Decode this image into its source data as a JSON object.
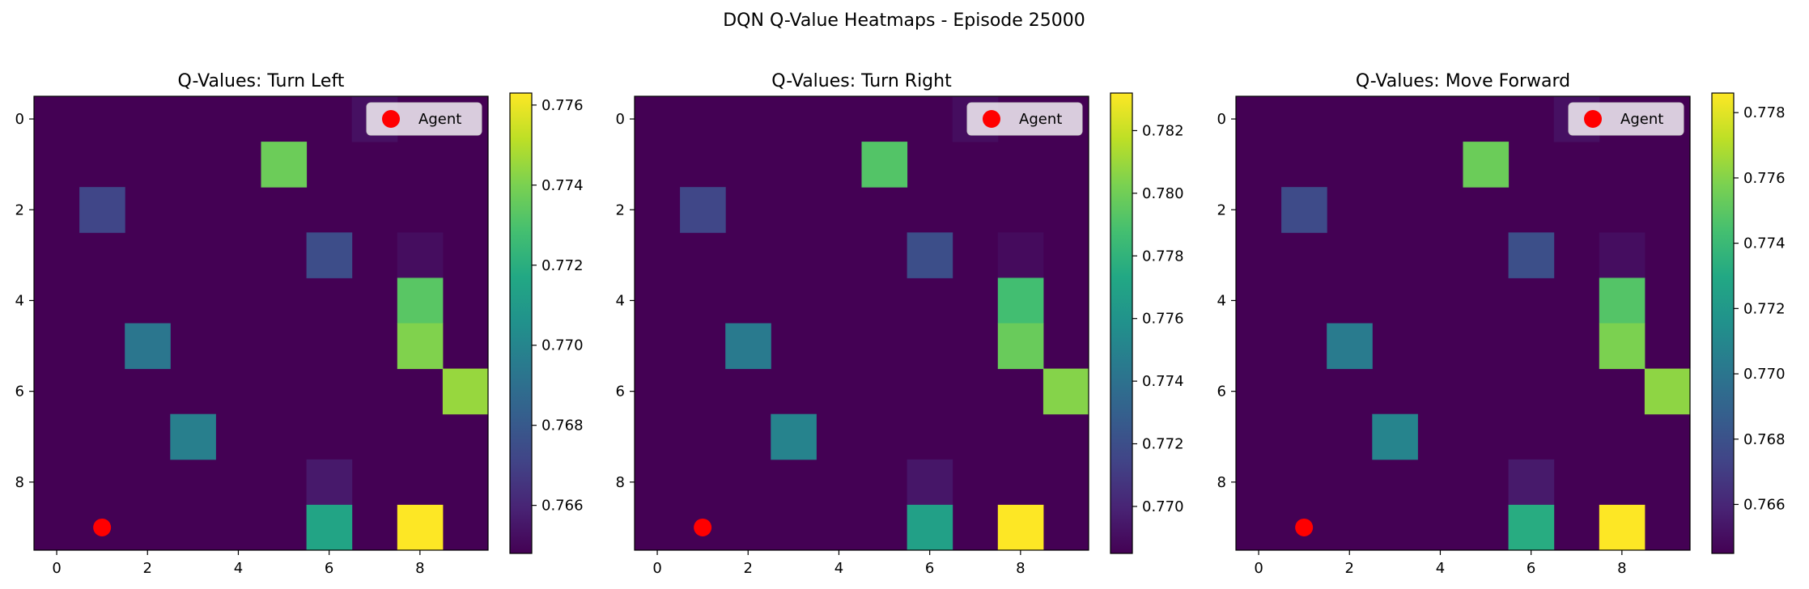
{
  "figure": {
    "suptitle": "DQN Q-Value Heatmaps - Episode 25000"
  },
  "colormap": "viridis",
  "agent": {
    "row": 9,
    "col": 1,
    "color": "#ff0000",
    "legend_label": "Agent",
    "legend_location": "upper right"
  },
  "chart_data": [
    {
      "type": "heatmap",
      "title": "Q-Values: Turn Left",
      "grid_size": [
        10,
        10
      ],
      "x_ticks": [
        0,
        2,
        4,
        6,
        8
      ],
      "y_ticks": [
        0,
        2,
        4,
        6,
        8
      ],
      "colorbar": {
        "range": [
          0.7648,
          0.7763
        ],
        "ticks": [
          0.766,
          0.768,
          0.77,
          0.772,
          0.774,
          0.776
        ]
      },
      "cells": [
        {
          "row": 0,
          "col": 7,
          "value": 0.7653
        },
        {
          "row": 1,
          "col": 5,
          "value": 0.7737
        },
        {
          "row": 2,
          "col": 1,
          "value": 0.7672
        },
        {
          "row": 3,
          "col": 6,
          "value": 0.7675
        },
        {
          "row": 3,
          "col": 8,
          "value": 0.7652
        },
        {
          "row": 4,
          "col": 8,
          "value": 0.7733
        },
        {
          "row": 5,
          "col": 2,
          "value": 0.7693
        },
        {
          "row": 5,
          "col": 8,
          "value": 0.7741
        },
        {
          "row": 6,
          "col": 9,
          "value": 0.7745
        },
        {
          "row": 7,
          "col": 3,
          "value": 0.7697
        },
        {
          "row": 8,
          "col": 6,
          "value": 0.7656
        },
        {
          "row": 9,
          "col": 6,
          "value": 0.7715
        },
        {
          "row": 9,
          "col": 8,
          "value": 0.7763
        }
      ],
      "default_value": 0.7648
    },
    {
      "type": "heatmap",
      "title": "Q-Values: Turn Right",
      "grid_size": [
        10,
        10
      ],
      "x_ticks": [
        0,
        2,
        4,
        6,
        8
      ],
      "y_ticks": [
        0,
        2,
        4,
        6,
        8
      ],
      "colorbar": {
        "range": [
          0.7685,
          0.7832
        ],
        "ticks": [
          0.77,
          0.772,
          0.774,
          0.776,
          0.778,
          0.78,
          0.782
        ]
      },
      "cells": [
        {
          "row": 0,
          "col": 7,
          "value": 0.769
        },
        {
          "row": 1,
          "col": 5,
          "value": 0.7792
        },
        {
          "row": 2,
          "col": 1,
          "value": 0.7716
        },
        {
          "row": 3,
          "col": 6,
          "value": 0.772
        },
        {
          "row": 3,
          "col": 8,
          "value": 0.7689
        },
        {
          "row": 4,
          "col": 8,
          "value": 0.7787
        },
        {
          "row": 5,
          "col": 2,
          "value": 0.7745
        },
        {
          "row": 5,
          "col": 8,
          "value": 0.7798
        },
        {
          "row": 6,
          "col": 9,
          "value": 0.7805
        },
        {
          "row": 7,
          "col": 3,
          "value": 0.775
        },
        {
          "row": 8,
          "col": 6,
          "value": 0.7694
        },
        {
          "row": 9,
          "col": 6,
          "value": 0.7768
        },
        {
          "row": 9,
          "col": 8,
          "value": 0.7832
        }
      ],
      "default_value": 0.7685
    },
    {
      "type": "heatmap",
      "title": "Q-Values: Move Forward",
      "grid_size": [
        10,
        10
      ],
      "x_ticks": [
        0,
        2,
        4,
        6,
        8
      ],
      "y_ticks": [
        0,
        2,
        4,
        6,
        8
      ],
      "colorbar": {
        "range": [
          0.7645,
          0.7786
        ],
        "ticks": [
          0.766,
          0.768,
          0.77,
          0.772,
          0.774,
          0.776,
          0.778
        ]
      },
      "cells": [
        {
          "row": 0,
          "col": 7,
          "value": 0.7651
        },
        {
          "row": 1,
          "col": 5,
          "value": 0.7754
        },
        {
          "row": 2,
          "col": 1,
          "value": 0.7677
        },
        {
          "row": 3,
          "col": 6,
          "value": 0.7679
        },
        {
          "row": 3,
          "col": 8,
          "value": 0.765
        },
        {
          "row": 4,
          "col": 8,
          "value": 0.7748
        },
        {
          "row": 5,
          "col": 2,
          "value": 0.7703
        },
        {
          "row": 5,
          "col": 8,
          "value": 0.7758
        },
        {
          "row": 6,
          "col": 9,
          "value": 0.7762
        },
        {
          "row": 7,
          "col": 3,
          "value": 0.7708
        },
        {
          "row": 8,
          "col": 6,
          "value": 0.7655
        },
        {
          "row": 9,
          "col": 6,
          "value": 0.7732
        },
        {
          "row": 9,
          "col": 8,
          "value": 0.7786
        }
      ],
      "default_value": 0.7645
    }
  ]
}
